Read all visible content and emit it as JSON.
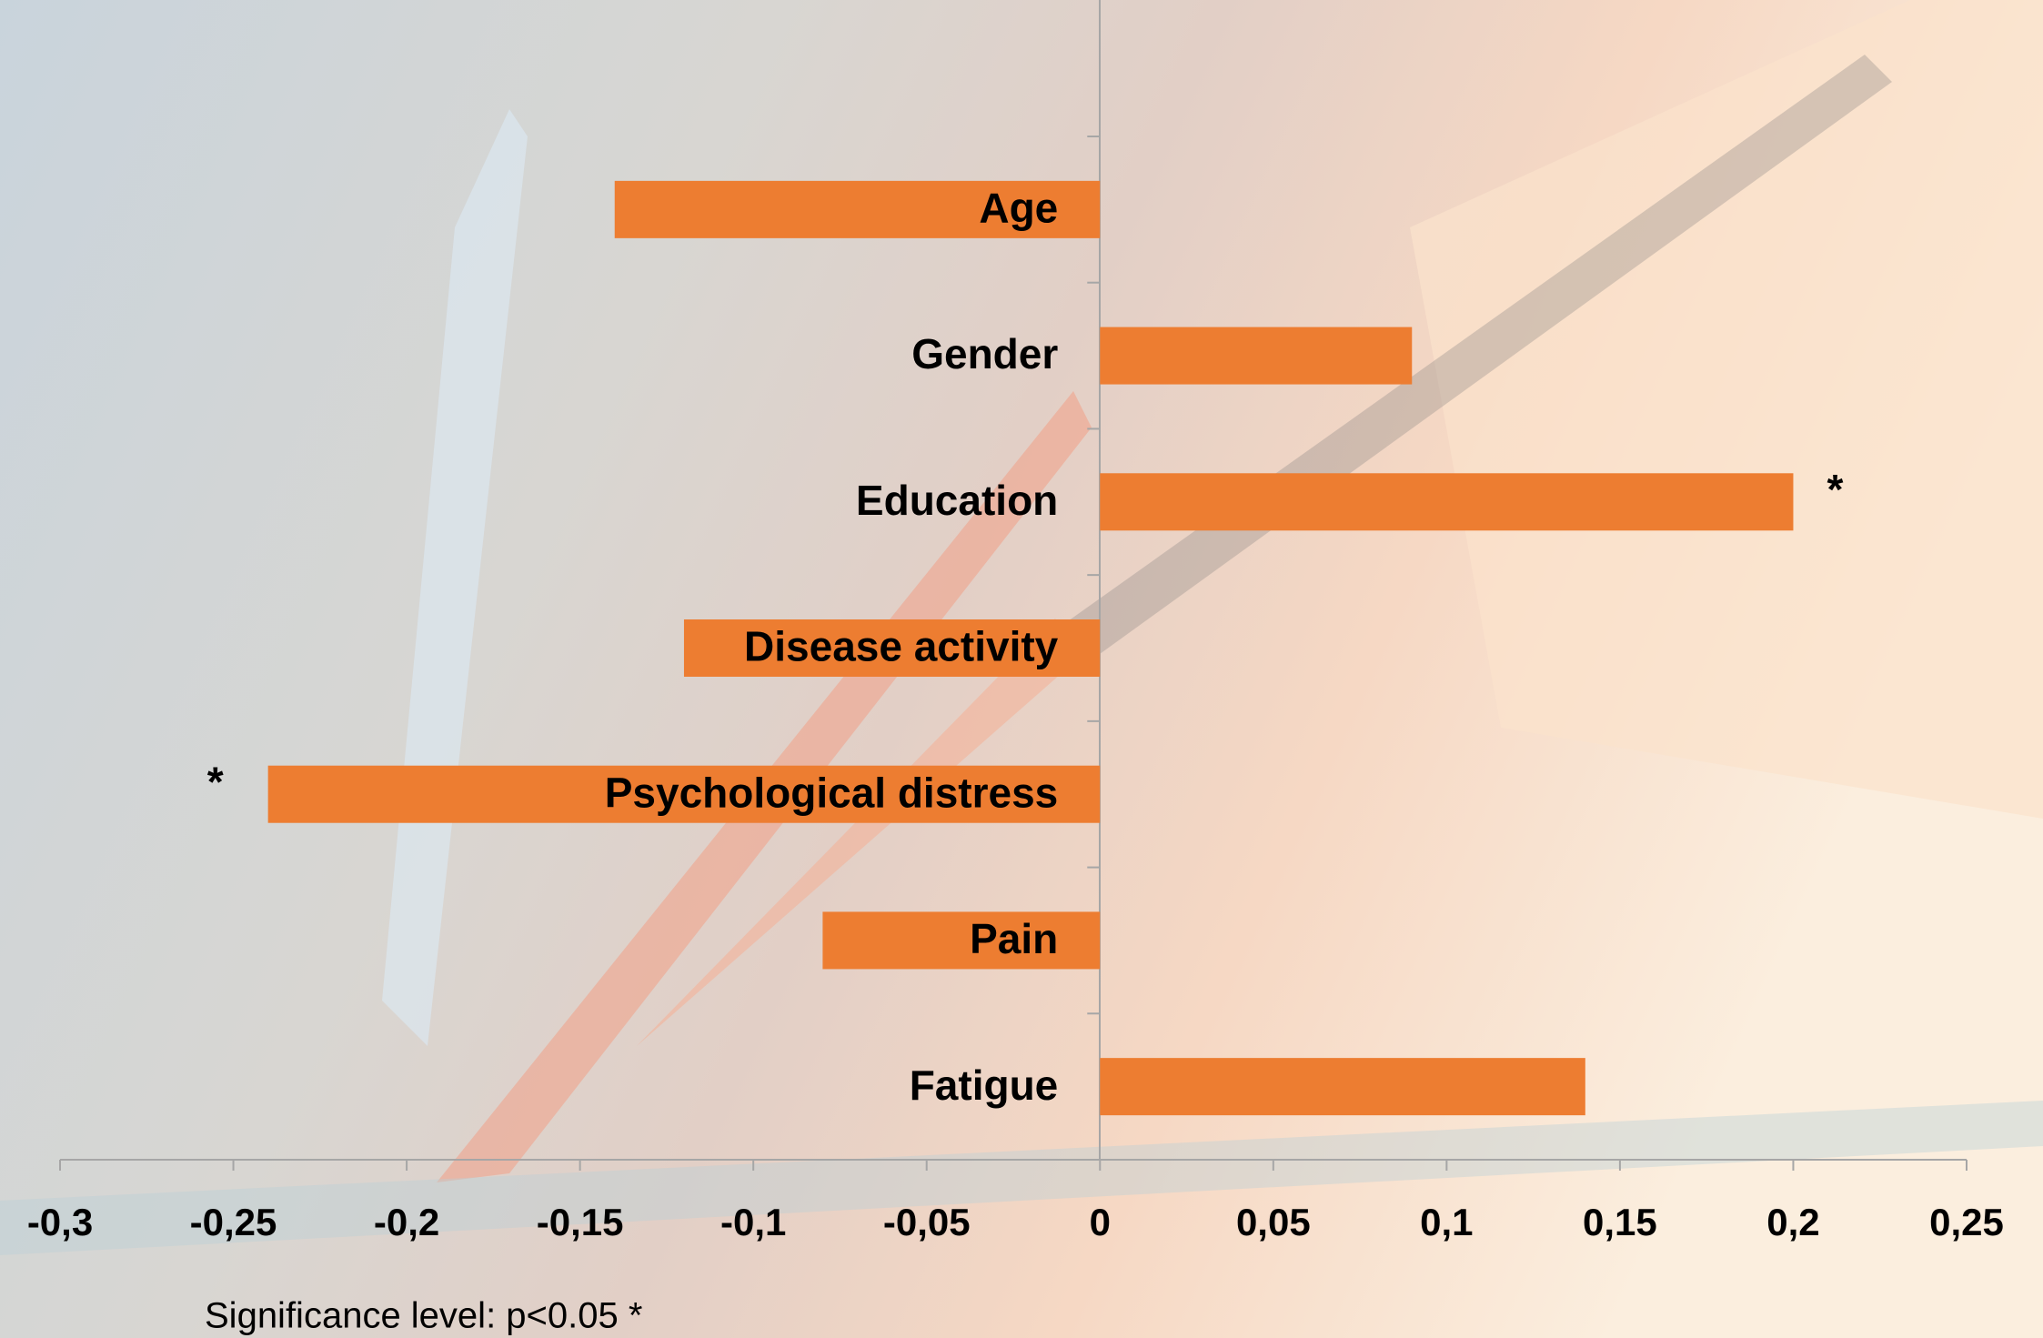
{
  "chart_data": {
    "type": "bar",
    "orientation": "horizontal",
    "categories": [
      "Age",
      "Gender",
      "Education",
      "Disease activity",
      "Psychological distress",
      "Pain",
      "Fatigue"
    ],
    "values": [
      -0.14,
      0.09,
      0.2,
      -0.12,
      -0.24,
      -0.08,
      0.14
    ],
    "significance": [
      null,
      null,
      "*",
      null,
      "*",
      null,
      null
    ],
    "color": "#ed7d31",
    "xlim": [
      -0.3,
      0.25
    ],
    "xticks": [
      {
        "value": -0.3,
        "label": "-0,3"
      },
      {
        "value": -0.25,
        "label": "-0,25"
      },
      {
        "value": -0.2,
        "label": "-0,2"
      },
      {
        "value": -0.15,
        "label": "-0,15"
      },
      {
        "value": -0.1,
        "label": "-0,1"
      },
      {
        "value": -0.05,
        "label": "-0,05"
      },
      0,
      {
        "value": 0.05,
        "label": "0,05"
      },
      {
        "value": 0.1,
        "label": "0,1"
      },
      {
        "value": 0.15,
        "label": "0,15"
      },
      {
        "value": 0.2,
        "label": "0,2"
      },
      {
        "value": 0.25,
        "label": "0,25"
      }
    ],
    "grid": false,
    "annotation": "Significance level: p<0.05 *"
  }
}
